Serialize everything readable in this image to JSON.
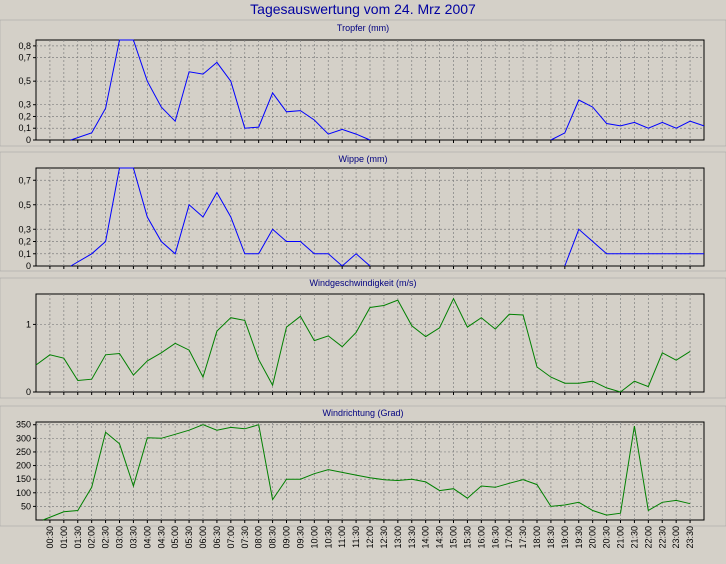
{
  "page": {
    "title": "Tagesauswertung vom 24. Mrz 2007"
  },
  "colors": {
    "rain": "#0000ff",
    "wind": "#008000"
  },
  "chart_data": [
    {
      "type": "line",
      "title": "Tropfer (mm)",
      "ylim": [
        0,
        0.85
      ],
      "yticks": [
        0,
        0.1,
        0.2,
        0.3,
        0.5,
        0.7,
        0.8
      ],
      "ytick_labels": [
        "0",
        "0,1",
        "0,2",
        "0,3",
        "0,5",
        "0,7",
        "0,8"
      ],
      "grid": true,
      "series": [
        {
          "color": "#0000ff",
          "segments": [
            [
              [
                1.25,
                0
              ],
              [
                2,
                0.06
              ],
              [
                2.5,
                0.27
              ],
              [
                3,
                0.85
              ],
              [
                3.5,
                0.85
              ],
              [
                4,
                0.5
              ],
              [
                4.5,
                0.28
              ],
              [
                5,
                0.16
              ],
              [
                5.5,
                0.58
              ],
              [
                6,
                0.56
              ],
              [
                6.5,
                0.66
              ],
              [
                7,
                0.5
              ],
              [
                7.5,
                0.1
              ],
              [
                8,
                0.11
              ],
              [
                8.5,
                0.4
              ],
              [
                9,
                0.24
              ],
              [
                9.5,
                0.25
              ],
              [
                10,
                0.17
              ],
              [
                10.5,
                0.05
              ],
              [
                11,
                0.09
              ],
              [
                11.5,
                0.05
              ],
              [
                12,
                0
              ]
            ],
            [
              [
                18.5,
                0
              ],
              [
                19,
                0.06
              ],
              [
                19.5,
                0.34
              ],
              [
                20,
                0.28
              ],
              [
                20.5,
                0.14
              ],
              [
                21,
                0.12
              ],
              [
                21.5,
                0.15
              ],
              [
                22,
                0.1
              ],
              [
                22.5,
                0.15
              ],
              [
                23,
                0.1
              ],
              [
                23.5,
                0.16
              ],
              [
                24,
                0.12
              ]
            ]
          ]
        }
      ]
    },
    {
      "type": "line",
      "title": "Wippe (mm)",
      "ylim": [
        0,
        0.8
      ],
      "yticks": [
        0,
        0.1,
        0.2,
        0.3,
        0.5,
        0.7
      ],
      "ytick_labels": [
        "0",
        "0,1",
        "0,2",
        "0,3",
        "0,5",
        "0,7"
      ],
      "grid": true,
      "series": [
        {
          "color": "#0000ff",
          "segments": [
            [
              [
                1.25,
                0
              ],
              [
                2,
                0.1
              ],
              [
                2.5,
                0.2
              ],
              [
                3,
                0.8
              ],
              [
                3.5,
                0.8
              ],
              [
                4,
                0.4
              ],
              [
                4.5,
                0.2
              ],
              [
                5,
                0.1
              ],
              [
                5.5,
                0.5
              ],
              [
                6,
                0.4
              ],
              [
                6.5,
                0.6
              ],
              [
                7,
                0.4
              ],
              [
                7.5,
                0.1
              ],
              [
                8,
                0.1
              ],
              [
                8.5,
                0.3
              ],
              [
                9,
                0.2
              ],
              [
                9.5,
                0.2
              ],
              [
                10,
                0.1
              ],
              [
                10.5,
                0.1
              ],
              [
                11,
                0
              ],
              [
                11.5,
                0.1
              ],
              [
                12,
                0
              ]
            ],
            [
              [
                19,
                0
              ],
              [
                19.5,
                0.3
              ],
              [
                20,
                0.2
              ],
              [
                20.5,
                0.1
              ],
              [
                21,
                0.1
              ],
              [
                21.5,
                0.1
              ],
              [
                22,
                0.1
              ],
              [
                22.5,
                0.1
              ],
              [
                23,
                0.1
              ],
              [
                23.5,
                0.1
              ],
              [
                24,
                0.1
              ]
            ]
          ]
        }
      ]
    },
    {
      "type": "line",
      "title": "Windgeschwindigkeit (m/s)",
      "ylim": [
        0,
        1.45
      ],
      "yticks": [
        0,
        1
      ],
      "ytick_labels": [
        "0",
        "1"
      ],
      "grid": true,
      "series": [
        {
          "color": "#008000",
          "segments": [
            [
              [
                0,
                0.4
              ],
              [
                0.5,
                0.55
              ],
              [
                1,
                0.5
              ],
              [
                1.5,
                0.17
              ],
              [
                2,
                0.19
              ],
              [
                2.5,
                0.55
              ],
              [
                3,
                0.57
              ],
              [
                3.5,
                0.25
              ],
              [
                4,
                0.46
              ],
              [
                4.5,
                0.58
              ],
              [
                5,
                0.72
              ],
              [
                5.5,
                0.62
              ],
              [
                6,
                0.22
              ],
              [
                6.5,
                0.9
              ],
              [
                7,
                1.1
              ],
              [
                7.5,
                1.06
              ],
              [
                8,
                0.48
              ],
              [
                8.5,
                0.1
              ],
              [
                9,
                0.96
              ],
              [
                9.5,
                1.12
              ],
              [
                10,
                0.76
              ],
              [
                10.5,
                0.83
              ],
              [
                11,
                0.67
              ],
              [
                11.5,
                0.88
              ],
              [
                12,
                1.25
              ],
              [
                12.5,
                1.28
              ],
              [
                13,
                1.36
              ],
              [
                13.5,
                0.98
              ],
              [
                14,
                0.82
              ],
              [
                14.5,
                0.95
              ],
              [
                15,
                1.38
              ],
              [
                15.5,
                0.96
              ],
              [
                16,
                1.1
              ],
              [
                16.5,
                0.93
              ],
              [
                17,
                1.15
              ],
              [
                17.5,
                1.14
              ],
              [
                18,
                0.37
              ],
              [
                18.5,
                0.22
              ],
              [
                19,
                0.13
              ],
              [
                19.5,
                0.13
              ],
              [
                20,
                0.16
              ],
              [
                20.5,
                0.06
              ],
              [
                21,
                0
              ],
              [
                21.5,
                0.16
              ],
              [
                22,
                0.08
              ],
              [
                22.5,
                0.58
              ],
              [
                23,
                0.47
              ],
              [
                23.5,
                0.6
              ]
            ]
          ]
        }
      ]
    },
    {
      "type": "line",
      "title": "Windrichtung (Grad)",
      "ylim": [
        0,
        360
      ],
      "yticks": [
        50,
        100,
        150,
        200,
        250,
        300,
        350
      ],
      "ytick_labels": [
        "50",
        "100",
        "150",
        "200",
        "250",
        "300",
        "350"
      ],
      "grid": true,
      "series": [
        {
          "color": "#008000",
          "segments": [
            [
              [
                0.25,
                0
              ],
              [
                1,
                30
              ],
              [
                1.5,
                35
              ],
              [
                2,
                120
              ],
              [
                2.5,
                322
              ],
              [
                3,
                280
              ],
              [
                3.5,
                125
              ],
              [
                4,
                302
              ],
              [
                4.5,
                300
              ],
              [
                5,
                315
              ],
              [
                5.5,
                330
              ],
              [
                6,
                350
              ],
              [
                6.5,
                330
              ],
              [
                7,
                340
              ],
              [
                7.5,
                335
              ],
              [
                8,
                350
              ],
              [
                8.5,
                75
              ],
              [
                9,
                150
              ],
              [
                9.5,
                150
              ],
              [
                10,
                170
              ],
              [
                10.5,
                185
              ],
              [
                11,
                175
              ],
              [
                11.5,
                165
              ],
              [
                12,
                155
              ],
              [
                12.5,
                148
              ],
              [
                13,
                145
              ],
              [
                13.5,
                150
              ],
              [
                14,
                140
              ],
              [
                14.5,
                108
              ],
              [
                15,
                115
              ],
              [
                15.5,
                80
              ],
              [
                16,
                125
              ],
              [
                16.5,
                120
              ],
              [
                17,
                135
              ],
              [
                17.5,
                148
              ],
              [
                18,
                130
              ],
              [
                18.5,
                50
              ],
              [
                19,
                55
              ],
              [
                19.5,
                65
              ],
              [
                20,
                35
              ],
              [
                20.5,
                18
              ],
              [
                21,
                25
              ],
              [
                21.5,
                345
              ],
              [
                22,
                35
              ],
              [
                22.5,
                65
              ],
              [
                23,
                72
              ],
              [
                23.5,
                60
              ]
            ]
          ]
        }
      ]
    }
  ],
  "xaxis": {
    "tick_labels": [
      "00:30",
      "01:00",
      "01:30",
      "02:00",
      "02:30",
      "03:00",
      "03:30",
      "04:00",
      "04:30",
      "05:00",
      "05:30",
      "06:00",
      "06:30",
      "07:00",
      "07:30",
      "08:00",
      "08:30",
      "09:00",
      "09:30",
      "10:00",
      "10:30",
      "11:00",
      "11:30",
      "12:00",
      "12:30",
      "13:00",
      "13:30",
      "14:00",
      "14:30",
      "15:00",
      "15:30",
      "16:00",
      "16:30",
      "17:00",
      "17:30",
      "18:00",
      "18:30",
      "19:00",
      "19:30",
      "20:00",
      "20:30",
      "21:00",
      "21:30",
      "22:00",
      "22:30",
      "23:00",
      "23:30"
    ]
  }
}
